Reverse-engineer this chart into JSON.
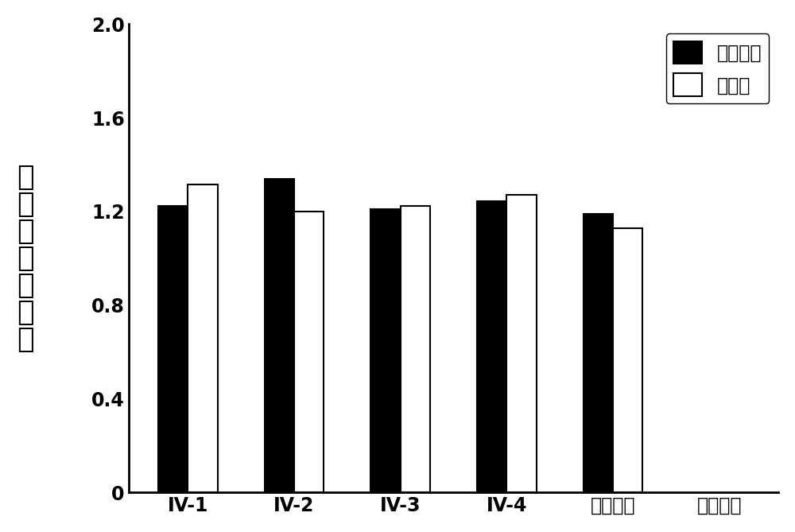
{
  "categories": [
    "IV-1",
    "IV-2",
    "IV-3",
    "IV-4",
    "阳性对照",
    "阴性对照"
  ],
  "series1_name": "甲胎蛋白",
  "series2_name": "白蛋白",
  "series1_values": [
    1.225,
    1.34,
    1.21,
    1.245,
    1.19,
    0.0
  ],
  "series2_values": [
    1.315,
    1.2,
    1.225,
    1.27,
    1.13,
    0.0
  ],
  "series1_color": "#000000",
  "series2_color": "#ffffff",
  "series2_edgecolor": "#000000",
  "ylabel": "相对内参表达量",
  "ylim": [
    0,
    2.0
  ],
  "yticks": [
    0,
    0.4,
    0.8,
    1.2,
    1.6,
    2.0
  ],
  "bar_width": 0.28,
  "figsize": [
    10.0,
    6.69
  ],
  "dpi": 100,
  "legend_loc": "upper right",
  "ylabel_fontsize": 26,
  "tick_fontsize": 17,
  "legend_fontsize": 17,
  "bar_linewidth": 1.5
}
